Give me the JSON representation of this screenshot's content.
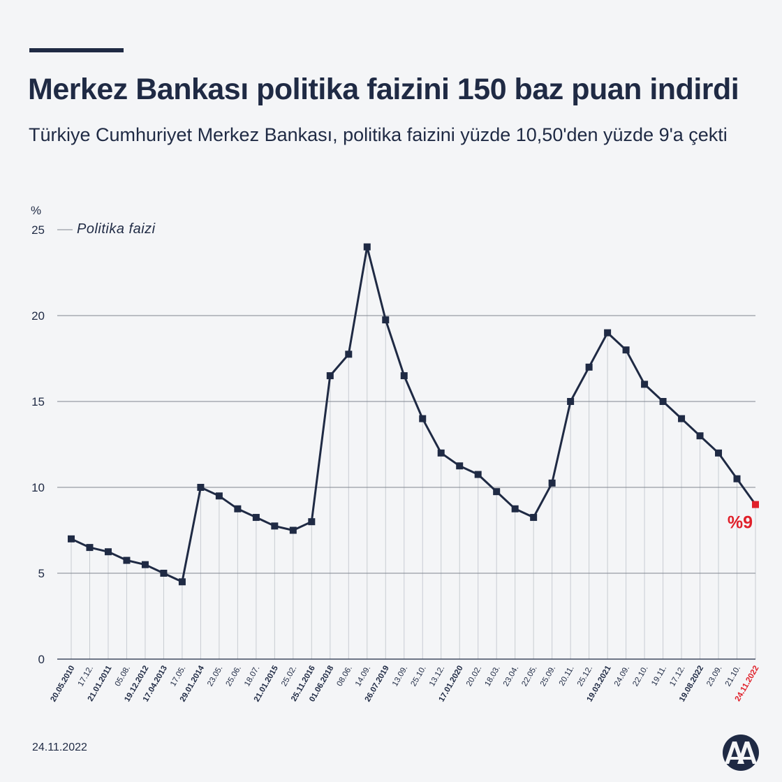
{
  "header": {
    "title": "Merkez Bankası politika faizini 150 baz puan indirdi",
    "subtitle": "Türkiye Cumhuriyet Merkez Bankası, politika faizini yüzde 10,50'den yüzde 9'a çekti"
  },
  "footer": {
    "date": "24.11.2022",
    "logo_text": "AA"
  },
  "colors": {
    "line": "#1f2a44",
    "highlight": "#e0202a",
    "grid": "#7f858f",
    "guide": "#c8ccd2"
  },
  "chart_data": {
    "type": "line",
    "ylabel": "%",
    "ylim": [
      0,
      25
    ],
    "yticks": [
      0,
      5,
      10,
      15,
      20,
      25
    ],
    "grid": true,
    "legend": "Politika faizi",
    "end_label": "%9",
    "series": [
      {
        "name": "Politika faizi",
        "points": [
          {
            "x": "20.05.2010",
            "y": 7,
            "bold": true
          },
          {
            "x": "17.12.",
            "y": 6.5
          },
          {
            "x": "21.01.2011",
            "y": 6.25,
            "bold": true
          },
          {
            "x": "05.08.",
            "y": 5.75
          },
          {
            "x": "19.12.2012",
            "y": 5.5,
            "bold": true
          },
          {
            "x": "17.04.2013",
            "y": 5,
            "bold": true
          },
          {
            "x": "17.05.",
            "y": 4.5
          },
          {
            "x": "29.01.2014",
            "y": 10,
            "bold": true
          },
          {
            "x": "23.05.",
            "y": 9.5
          },
          {
            "x": "25.06.",
            "y": 8.75
          },
          {
            "x": "18.07.",
            "y": 8.25
          },
          {
            "x": "21.01.2015",
            "y": 7.75,
            "bold": true
          },
          {
            "x": "25.02.",
            "y": 7.5
          },
          {
            "x": "25.11.2016",
            "y": 8,
            "bold": true
          },
          {
            "x": "01.06.2018",
            "y": 16.5,
            "bold": true
          },
          {
            "x": "08.06.",
            "y": 17.75
          },
          {
            "x": "14.09.",
            "y": 24
          },
          {
            "x": "26.07.2019",
            "y": 19.75,
            "bold": true
          },
          {
            "x": "13.09.",
            "y": 16.5
          },
          {
            "x": "25.10.",
            "y": 14
          },
          {
            "x": "13.12.",
            "y": 12
          },
          {
            "x": "17.01.2020",
            "y": 11.25,
            "bold": true
          },
          {
            "x": "20.02.",
            "y": 10.75
          },
          {
            "x": "18.03.",
            "y": 9.75
          },
          {
            "x": "23.04.",
            "y": 8.75
          },
          {
            "x": "22.05.",
            "y": 8.25
          },
          {
            "x": "25.09.",
            "y": 10.25
          },
          {
            "x": "20.11.",
            "y": 15
          },
          {
            "x": "25.12.",
            "y": 17
          },
          {
            "x": "19.03.2021",
            "y": 19,
            "bold": true
          },
          {
            "x": "24.09.",
            "y": 18
          },
          {
            "x": "22.10.",
            "y": 16
          },
          {
            "x": "19.11.",
            "y": 15
          },
          {
            "x": "17.12.",
            "y": 14
          },
          {
            "x": "19.08.2022",
            "y": 13,
            "bold": true
          },
          {
            "x": "23.09.",
            "y": 12
          },
          {
            "x": "21.10.",
            "y": 10.5
          },
          {
            "x": "24.11.2022",
            "y": 9,
            "bold": true,
            "highlight": true
          }
        ]
      }
    ]
  }
}
